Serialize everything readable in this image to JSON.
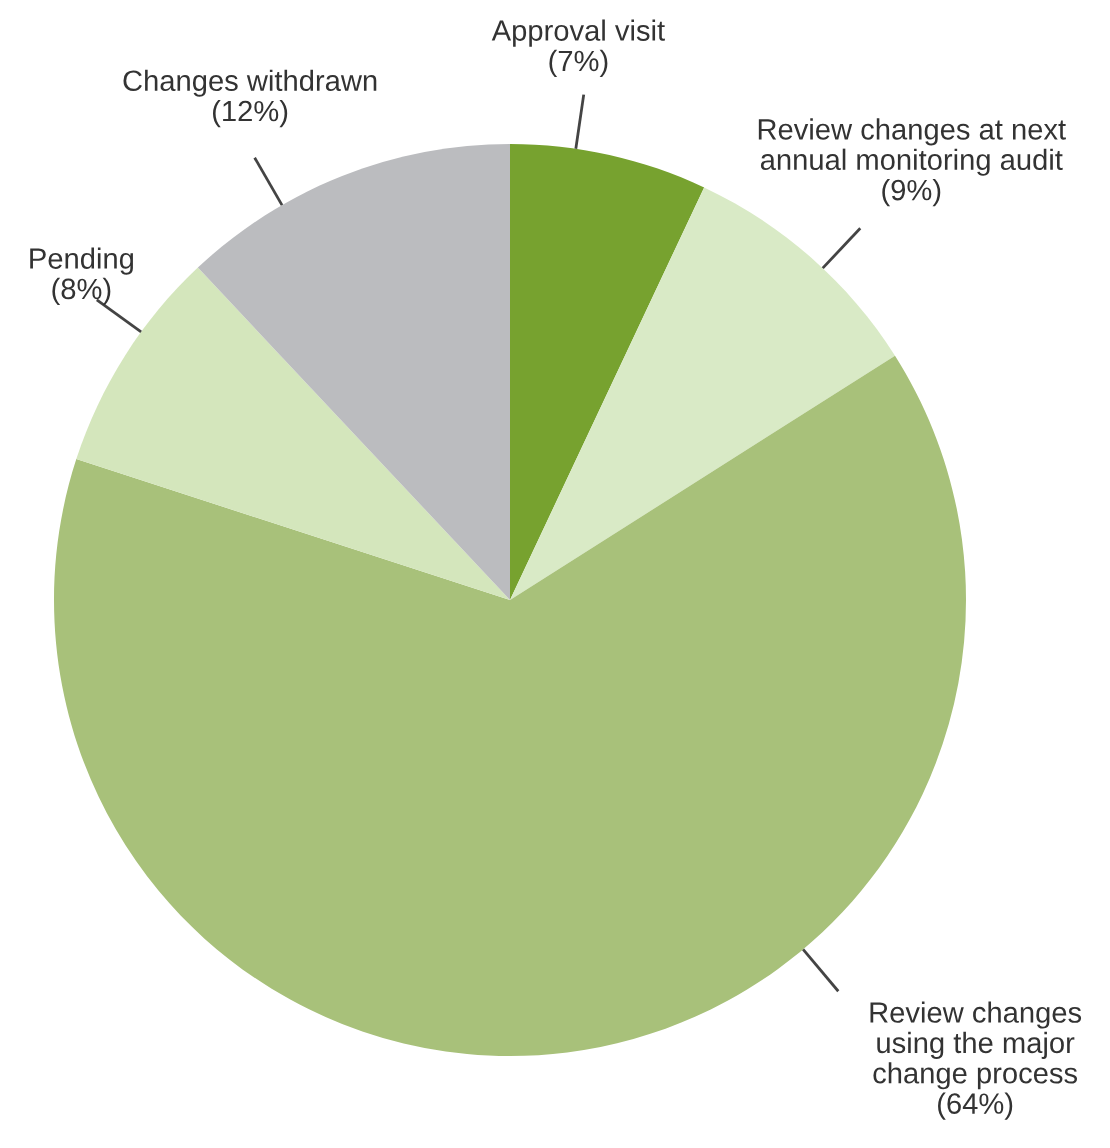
{
  "chart_data": {
    "type": "pie",
    "categories": [
      "Approval visit",
      "Review changes at next\nannual monitoring audit",
      "Review changes\nusing the major\nchange process",
      "Pending",
      "Changes withdrawn"
    ],
    "values": [
      7,
      9,
      64,
      8,
      12
    ],
    "value_labels": [
      "(7%)",
      "(9%)",
      "(64%)",
      "(8%)",
      "(12%)"
    ],
    "colors": [
      "#77a22f",
      "#d9eac6",
      "#a8c17a",
      "#d4e6bc",
      "#bbbcbf"
    ]
  }
}
